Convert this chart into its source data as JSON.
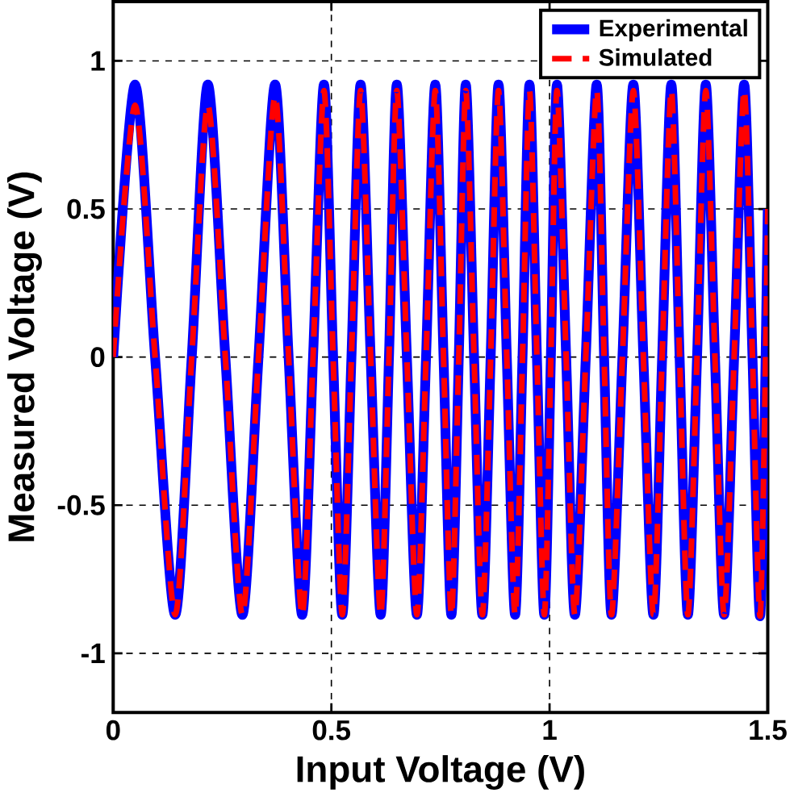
{
  "chart_data": {
    "type": "line",
    "xlabel": "Input Voltage (V)",
    "ylabel": "Measured Voltage (V)",
    "x": [
      0,
      0.05,
      0.096,
      0.142,
      0.18,
      0.217,
      0.257,
      0.296,
      0.333,
      0.371,
      0.402,
      0.433,
      0.458,
      0.483,
      0.504,
      0.525,
      0.546,
      0.567,
      0.59,
      0.613,
      0.632,
      0.65,
      0.673,
      0.696,
      0.717,
      0.738,
      0.757,
      0.775,
      0.792,
      0.808,
      0.827,
      0.846,
      0.865,
      0.883,
      0.902,
      0.921,
      0.938,
      0.954,
      0.971,
      0.988,
      1.003,
      1.017,
      1.038,
      1.058,
      1.083,
      1.108,
      1.125,
      1.142,
      1.167,
      1.192,
      1.215,
      1.238,
      1.258,
      1.279,
      1.298,
      1.317,
      1.338,
      1.358,
      1.379,
      1.4,
      1.423,
      1.446,
      1.465,
      1.483,
      1.5
    ],
    "series": [
      {
        "name": "Experimental",
        "color": "#0000ff",
        "line_style": "solid",
        "values": [
          0,
          0.92,
          0,
          -0.87,
          0,
          0.92,
          0,
          -0.87,
          0,
          0.92,
          0,
          -0.87,
          0,
          0.92,
          0,
          -0.87,
          0,
          0.92,
          0,
          -0.87,
          0,
          0.92,
          0,
          -0.87,
          0,
          0.92,
          0,
          -0.87,
          0,
          0.92,
          0,
          -0.87,
          0,
          0.92,
          0,
          -0.87,
          0,
          0.92,
          0,
          -0.87,
          0,
          0.92,
          0,
          -0.87,
          0,
          0.92,
          0,
          -0.87,
          0,
          0.92,
          0,
          -0.87,
          0,
          0.92,
          0,
          -0.87,
          0,
          0.92,
          0,
          -0.87,
          0,
          0.92,
          0,
          -0.87,
          0.5
        ]
      },
      {
        "name": "Simulated",
        "color": "#ff0000",
        "line_style": "dashed",
        "values": [
          0,
          0.85,
          0,
          -0.87,
          0,
          0.85,
          0,
          -0.87,
          0,
          0.88,
          0,
          -0.87,
          0,
          0.9,
          0,
          -0.87,
          0,
          0.9,
          0,
          -0.87,
          0,
          0.9,
          0,
          -0.87,
          0,
          0.9,
          0,
          -0.87,
          0,
          0.9,
          0,
          -0.87,
          0,
          0.9,
          0,
          -0.87,
          0,
          0.9,
          0,
          -0.87,
          0,
          0.9,
          0,
          -0.87,
          0,
          0.9,
          0,
          -0.87,
          0,
          0.9,
          0,
          -0.87,
          0,
          0.9,
          0,
          -0.87,
          0,
          0.9,
          0,
          -0.87,
          0,
          0.9,
          0,
          -0.87,
          0.5
        ]
      }
    ],
    "xlim": [
      0,
      1.5
    ],
    "ylim": [
      -1.2,
      1.2
    ],
    "xticks": [
      0,
      0.5,
      1,
      1.5
    ],
    "yticks": [
      -1,
      -0.5,
      0,
      0.5,
      1
    ],
    "grid": true,
    "legend": "top right"
  }
}
